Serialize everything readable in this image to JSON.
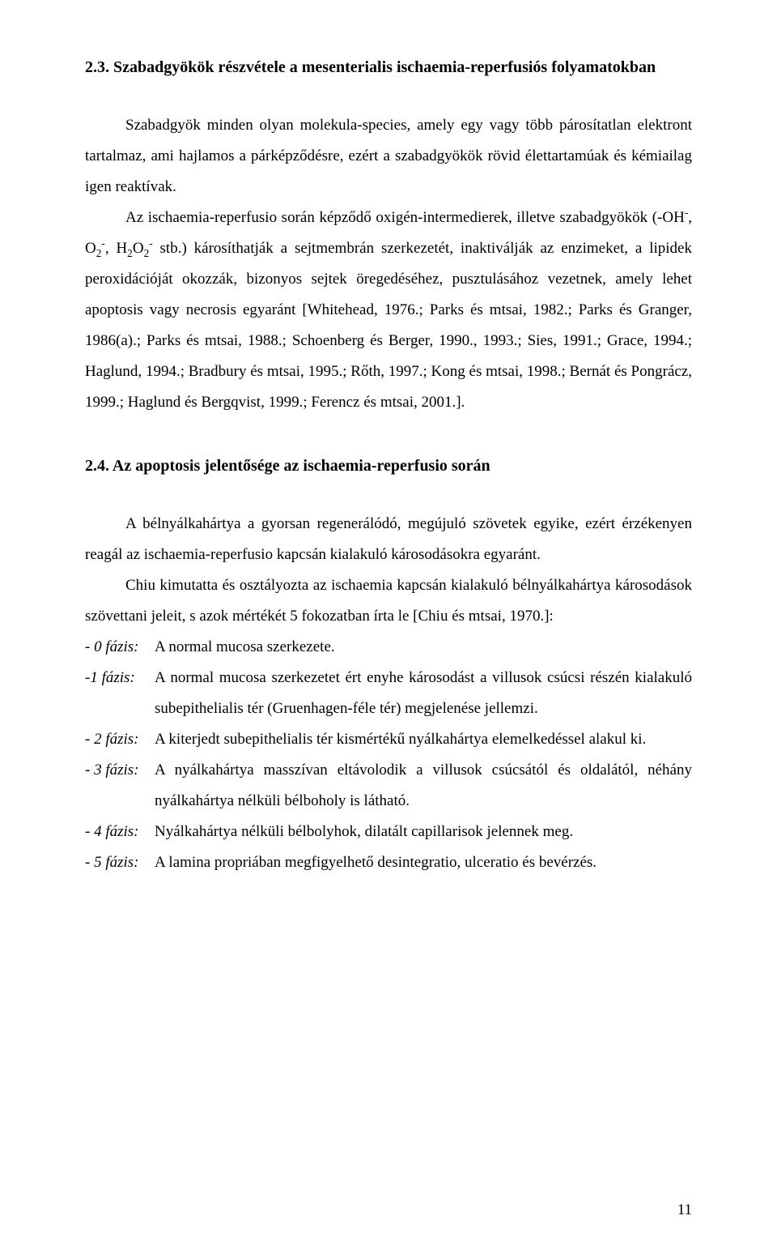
{
  "section1": {
    "heading": "2.3. Szabadgyökök részvétele a mesenterialis ischaemia-reperfusiós folyamatokban",
    "p1_a": "Szabadgyök minden olyan molekula-species, amely egy vagy több párosítatlan elektront tartalmaz, ami hajlamos a párképződésre, ezért a szabadgyökök rövid élettartamúak és kémiailag igen reaktívak.",
    "p2_a": "Az ischaemia-reperfusio során képződő oxigén-intermedierek, illetve szabadgyökök (-OH",
    "p2_b": ", O",
    "p2_c": ", H",
    "p2_d": "O",
    "p2_e": " stb.) károsíthatják a sejtmembrán szerkezetét, inaktiválják az enzimeket, a lipidek peroxidációját okozzák, bizonyos sejtek öregedéséhez, pusztulásához vezetnek, amely lehet apoptosis vagy necrosis egyaránt [Whitehead, 1976.; Parks és mtsai, 1982.; Parks és Granger, 1986(a).; Parks és mtsai, 1988.; Schoenberg és Berger, 1990., 1993.; Sies, 1991.; Grace, 1994.; Haglund, 1994.; Bradbury és mtsai, 1995.; Rőth, 1997.; Kong és mtsai, 1998.; Bernát és Pongrácz, 1999.; Haglund és Bergqvist, 1999.; Ferencz és mtsai, 2001.]."
  },
  "section2": {
    "heading": "2.4. Az apoptosis jelentősége az ischaemia-reperfusio során",
    "p1": "A bélnyálkahártya a gyorsan regenerálódó, megújuló szövetek egyike, ezért érzékenyen reagál az ischaemia-reperfusio kapcsán kialakuló károsodásokra egyaránt.",
    "p2": "Chiu kimutatta és osztályozta az ischaemia kapcsán kialakuló bélnyálkahártya károsodások szövettani jeleit, s azok mértékét 5 fokozatban írta le [Chiu és mtsai, 1970.]:",
    "phases": [
      {
        "label": "- 0 fázis:",
        "text": "A normal mucosa szerkezete."
      },
      {
        "label": "-1 fázis:",
        "text": "A normal mucosa szerkezetet ért enyhe károsodást a villusok csúcsi részén kialakuló subepithelialis tér (Gruenhagen-féle tér) megjelenése jellemzi."
      },
      {
        "label": "- 2 fázis:",
        "text": "A kiterjedt subepithelialis tér kismértékű nyálkahártya elemelkedéssel alakul ki."
      },
      {
        "label": "- 3 fázis:",
        "text": "A nyálkahártya masszívan eltávolodik a villusok csúcsától és oldalától, néhány nyálkahártya nélküli bélboholy is látható."
      },
      {
        "label": "- 4 fázis:",
        "text": "Nyálkahártya nélküli bélbolyhok, dilatált capillarisok jelennek meg."
      },
      {
        "label": "- 5 fázis:",
        "text": "A lamina propriában megfigyelhető desintegratio, ulceratio és bevérzés."
      }
    ]
  },
  "pageNumber": "11"
}
